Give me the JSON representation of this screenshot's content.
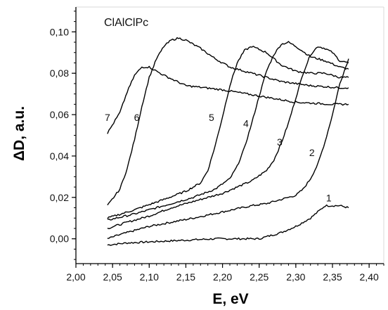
{
  "chart_data": {
    "type": "line",
    "title": "ClAlClPc",
    "xlabel": "E, eV",
    "ylabel": "ΔD, a.u.",
    "xlim": [
      2.0,
      2.42
    ],
    "ylim": [
      -0.012,
      0.112
    ],
    "x_ticks": [
      "2,00",
      "2,05",
      "2,10",
      "2,15",
      "2,20",
      "2,25",
      "2,30",
      "2,35",
      "2,40"
    ],
    "y_ticks": [
      "0,00",
      "0,02",
      "0,04",
      "0,06",
      "0,08",
      "0,10"
    ],
    "grid": false,
    "series": [
      {
        "name": "1",
        "label_at": [
          2.345,
          0.018
        ],
        "x": [
          2.043,
          2.07,
          2.1,
          2.13,
          2.16,
          2.19,
          2.22,
          2.25,
          2.28,
          2.3,
          2.32,
          2.33,
          2.34,
          2.35,
          2.36,
          2.372
        ],
        "y": [
          -0.003,
          -0.002,
          -0.0015,
          -0.001,
          -0.0005,
          0.0,
          0.0,
          0.0,
          0.003,
          0.006,
          0.01,
          0.013,
          0.016,
          0.016,
          0.016,
          0.015
        ]
      },
      {
        "name": "2",
        "label_at": [
          2.322,
          0.04
        ],
        "x": [
          2.043,
          2.06,
          2.08,
          2.1,
          2.13,
          2.16,
          2.2,
          2.24,
          2.26,
          2.28,
          2.3,
          2.31,
          2.32,
          2.33,
          2.34,
          2.35,
          2.36,
          2.372
        ],
        "y": [
          0.0,
          0.002,
          0.004,
          0.006,
          0.008,
          0.01,
          0.013,
          0.016,
          0.017,
          0.019,
          0.021,
          0.024,
          0.029,
          0.036,
          0.047,
          0.06,
          0.075,
          0.087
        ]
      },
      {
        "name": "3",
        "label_at": [
          2.278,
          0.045
        ],
        "x": [
          2.043,
          2.07,
          2.1,
          2.13,
          2.16,
          2.2,
          2.24,
          2.26,
          2.27,
          2.28,
          2.29,
          2.3,
          2.31,
          2.32,
          2.33,
          2.34,
          2.35,
          2.36,
          2.372
        ],
        "y": [
          0.005,
          0.008,
          0.011,
          0.015,
          0.018,
          0.022,
          0.028,
          0.033,
          0.038,
          0.046,
          0.056,
          0.068,
          0.08,
          0.089,
          0.093,
          0.092,
          0.09,
          0.086,
          0.085
        ]
      },
      {
        "name": "4",
        "label_at": [
          2.232,
          0.054
        ],
        "x": [
          2.043,
          2.08,
          2.12,
          2.16,
          2.19,
          2.21,
          2.22,
          2.23,
          2.24,
          2.25,
          2.26,
          2.27,
          2.28,
          2.29,
          2.3,
          2.32,
          2.34,
          2.36,
          2.372
        ],
        "y": [
          0.009,
          0.012,
          0.016,
          0.02,
          0.024,
          0.029,
          0.035,
          0.044,
          0.056,
          0.069,
          0.081,
          0.089,
          0.094,
          0.095,
          0.093,
          0.088,
          0.086,
          0.083,
          0.082
        ]
      },
      {
        "name": "5",
        "label_at": [
          2.185,
          0.057
        ],
        "x": [
          2.043,
          2.08,
          2.12,
          2.15,
          2.17,
          2.18,
          2.19,
          2.2,
          2.21,
          2.22,
          2.23,
          2.24,
          2.26,
          2.28,
          2.3,
          2.32,
          2.34,
          2.36,
          2.372
        ],
        "y": [
          0.01,
          0.014,
          0.019,
          0.023,
          0.027,
          0.033,
          0.045,
          0.059,
          0.074,
          0.085,
          0.091,
          0.093,
          0.09,
          0.084,
          0.081,
          0.08,
          0.08,
          0.078,
          0.078
        ]
      },
      {
        "name": "6",
        "label_at": [
          2.083,
          0.057
        ],
        "x": [
          2.043,
          2.06,
          2.07,
          2.08,
          2.09,
          2.1,
          2.11,
          2.12,
          2.13,
          2.14,
          2.15,
          2.17,
          2.19,
          2.21,
          2.24,
          2.28,
          2.32,
          2.36,
          2.372
        ],
        "y": [
          0.016,
          0.024,
          0.034,
          0.048,
          0.064,
          0.078,
          0.087,
          0.093,
          0.096,
          0.097,
          0.096,
          0.092,
          0.087,
          0.083,
          0.08,
          0.076,
          0.074,
          0.073,
          0.073
        ]
      },
      {
        "name": "7",
        "label_at": [
          2.043,
          0.057
        ],
        "x": [
          2.043,
          2.06,
          2.07,
          2.08,
          2.09,
          2.1,
          2.12,
          2.15,
          2.2,
          2.25,
          2.3,
          2.35,
          2.372
        ],
        "y": [
          0.051,
          0.061,
          0.071,
          0.079,
          0.083,
          0.083,
          0.079,
          0.074,
          0.072,
          0.069,
          0.066,
          0.065,
          0.065
        ]
      }
    ]
  }
}
